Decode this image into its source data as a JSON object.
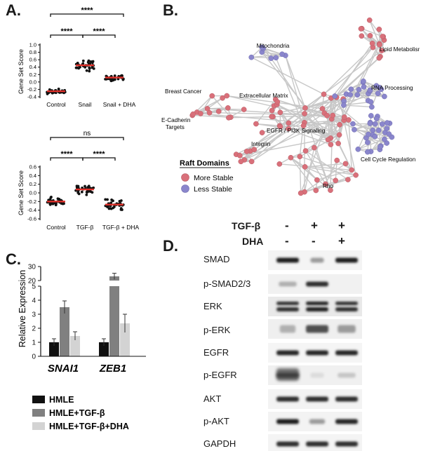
{
  "panel_labels": {
    "a": "A.",
    "b": "B.",
    "c": "C.",
    "d": "D."
  },
  "panel_a": {
    "plot1": {
      "y_label": "Gene Set Score",
      "y_ticks": [
        "1.0",
        "0.8",
        "0.6",
        "0.4",
        "0.2",
        "0.0",
        "-0.2",
        "-0.4"
      ],
      "groups": [
        "Control",
        "Snail",
        "Snail + DHA"
      ],
      "means": [
        -0.25,
        0.45,
        0.12
      ],
      "sig": [
        "****",
        "****",
        "****"
      ]
    },
    "plot2": {
      "y_label": "Gene Set Score",
      "y_ticks": [
        "0.6",
        "0.4",
        "0.2",
        "0.0",
        "-0.2",
        "-0.4",
        "-0.6"
      ],
      "groups": [
        "Control",
        "TGF-β",
        "TGF-β + DHA"
      ],
      "means": [
        -0.2,
        0.08,
        -0.27
      ],
      "sig": [
        "ns",
        "****",
        "****"
      ]
    }
  },
  "panel_b": {
    "legend_title": "Raft Domains",
    "legend_items": [
      {
        "label": "More Stable",
        "color": "#d9707a"
      },
      {
        "label": "Less Stable",
        "color": "#8a86cc"
      }
    ],
    "clusters": [
      "Mitochondria",
      "Lipid Metabolism",
      "RNA Processing",
      "Breast Cancer",
      "Extracellular Matrix",
      "E-Cadherin Targets",
      "EGFR / PI3K Signaling",
      "Integrin",
      "Cell Cycle Regulation",
      "Rho"
    ]
  },
  "panel_c": {
    "y_label": "Relative Expression",
    "y_ticks_low": [
      "0",
      "1",
      "2",
      "3",
      "4",
      "5"
    ],
    "y_ticks_high": [
      "20",
      "30"
    ],
    "genes": [
      "SNAI1",
      "ZEB1"
    ],
    "legend": [
      "HMLE",
      "HMLE+TGF-β",
      "HMLE+TGF-β+DHA"
    ]
  },
  "panel_d": {
    "treatments": [
      {
        "name": "TGF-β",
        "values": [
          "-",
          "+",
          "+"
        ]
      },
      {
        "name": "DHA",
        "values": [
          "-",
          "-",
          "+"
        ]
      }
    ],
    "blots": [
      "SMAD",
      "p-SMAD2/3",
      "ERK",
      "p-ERK",
      "EGFR",
      "p-EGFR",
      "AKT",
      "p-AKT",
      "GAPDH"
    ]
  },
  "chart_data": [
    {
      "type": "scatter",
      "ylabel": "Gene Set Score",
      "categories": [
        "Control",
        "Snail",
        "Snail + DHA"
      ],
      "ylim": [
        -0.4,
        1.0
      ],
      "series": [
        {
          "values": [
            -0.25,
            0.45,
            0.12
          ]
        }
      ]
    },
    {
      "type": "scatter",
      "ylabel": "Gene Set Score",
      "categories": [
        "Control",
        "TGF-β",
        "TGF-β + DHA"
      ],
      "ylim": [
        -0.6,
        0.6
      ],
      "series": [
        {
          "values": [
            -0.2,
            0.08,
            -0.27
          ]
        }
      ]
    },
    {
      "type": "bar",
      "ylabel": "Relative Expression",
      "categories": [
        "SNAI1",
        "ZEB1"
      ],
      "series": [
        {
          "name": "HMLE",
          "values": [
            1.0,
            1.0
          ],
          "errors": [
            0.25,
            0.25
          ],
          "color": "#111111"
        },
        {
          "name": "HMLE+TGF-β",
          "values": [
            3.5,
            23
          ],
          "errors": [
            0.45,
            2.2
          ],
          "color": "#808080"
        },
        {
          "name": "HMLE+TGF-β+DHA",
          "values": [
            1.45,
            2.35
          ],
          "errors": [
            0.3,
            0.65
          ],
          "color": "#d3d3d3"
        }
      ]
    }
  ]
}
